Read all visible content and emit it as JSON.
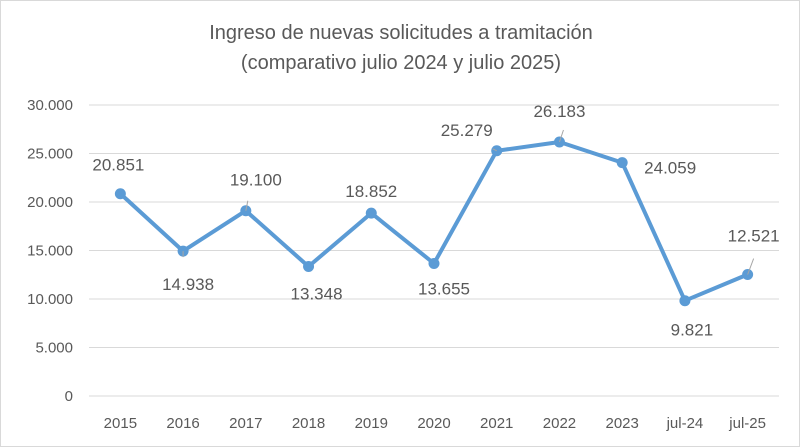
{
  "chart_data": {
    "type": "line",
    "title": "Ingreso de nuevas solicitudes a tramitación",
    "subtitle": "(comparativo julio 2024 y julio 2025)",
    "categories": [
      "2015",
      "2016",
      "2017",
      "2018",
      "2019",
      "2020",
      "2021",
      "2022",
      "2023",
      "jul-24",
      "jul-25"
    ],
    "series": [
      {
        "values": [
          20851,
          14938,
          19100,
          13348,
          18852,
          13655,
          25279,
          26183,
          24059,
          9821,
          12521
        ],
        "data_labels": [
          "20.851",
          "14.938",
          "19.100",
          "13.348",
          "18.852",
          "13.655",
          "25.279",
          "26.183",
          "24.059",
          "9.821",
          "12.521"
        ],
        "color": "#5b9bd5"
      }
    ],
    "ylim": [
      0,
      30000
    ],
    "yticks": [
      0,
      5000,
      10000,
      15000,
      20000,
      25000,
      30000
    ],
    "ytick_labels": [
      "0",
      "5.000",
      "10.000",
      "15.000",
      "20.000",
      "25.000",
      "30.000"
    ],
    "grid": true,
    "gridline_color": "#d9d9d9",
    "text_color": "#595959"
  }
}
